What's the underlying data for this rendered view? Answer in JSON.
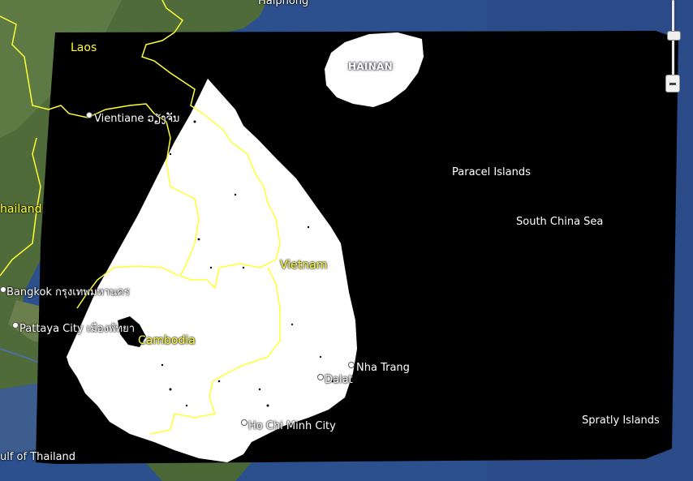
{
  "map": {
    "labels": {
      "laos": "Laos",
      "thailand": "hailand",
      "vietnam": "Vietnam",
      "cambodia": "Cambodia",
      "hainan": "HAINAN",
      "haiphong": "Haiphong",
      "vientiane": "Vientiane ວຽງຈັນ",
      "bangkok": "Bangkok กรุงเทพมหานคร",
      "pattaya": "Pattaya City เมืองพัทยา",
      "nha_trang": "Nha Trang",
      "dalat": "Dalat",
      "hcmc": "Ho Chi Minh City",
      "paracel": "Paracel Islands",
      "south_china_sea": "South China Sea",
      "spratly": "Spratly Islands",
      "gulf": "ulf of Thailand"
    },
    "colors": {
      "ocean": "#2b4e8c",
      "overlay": "#000000",
      "mask_land": "#ffffff",
      "border": "#ffff33",
      "country_label": "#ffff33"
    },
    "icons": {
      "zoom_slider": "zoom-slider-icon",
      "zoom_out": "zoom-out-icon",
      "city": "city-dot-icon"
    }
  }
}
